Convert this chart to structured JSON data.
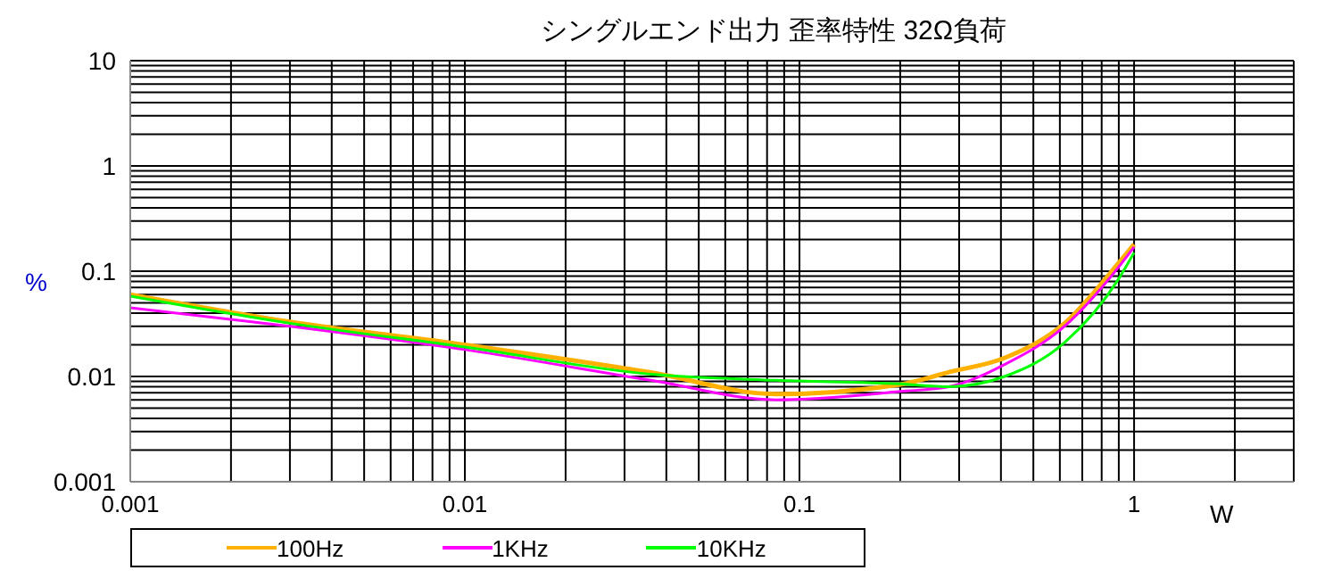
{
  "chart_data": {
    "type": "line",
    "title": "シングルエンド出力 歪率特性 32Ω負荷",
    "xlabel": "W",
    "ylabel": "%",
    "log": "xy",
    "grid": true,
    "legend": "bottom",
    "marker": "none",
    "line_style": "solid",
    "xlim": [
      0.001,
      3
    ],
    "xticks": [
      0.001,
      0.01,
      0.1,
      1
    ],
    "ylim": [
      0.001,
      10
    ],
    "yticks": [
      0.001,
      0.01,
      0.1,
      1,
      10
    ],
    "x": [
      0.001,
      0.003,
      0.01,
      0.036,
      0.085,
      0.2,
      0.28,
      0.41,
      0.62,
      0.9,
      1
    ],
    "series": [
      {
        "name": "100Hz",
        "color": "#ffb000",
        "values": [
          0.06,
          0.033,
          0.02,
          0.0109,
          0.0068,
          0.0084,
          0.011,
          0.015,
          0.032,
          0.12,
          0.18
        ]
      },
      {
        "name": "1KHz",
        "color": "#ff00ff",
        "values": [
          0.045,
          0.03,
          0.018,
          0.0092,
          0.006,
          0.0072,
          0.008,
          0.013,
          0.03,
          0.11,
          0.17
        ]
      },
      {
        "name": "10KHz",
        "color": "#00ff00",
        "values": [
          0.058,
          0.032,
          0.019,
          0.0105,
          0.0092,
          0.0085,
          0.008,
          0.01,
          0.021,
          0.085,
          0.15
        ]
      }
    ]
  }
}
